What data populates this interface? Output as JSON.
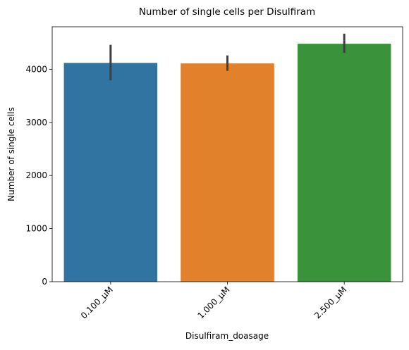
{
  "chart_data": {
    "type": "bar",
    "title": "Number of single cells per Disulfiram",
    "xlabel": "Disulfiram_doasage",
    "ylabel": "Number of single cells",
    "categories": [
      "0.100_µM",
      "1.000_µM",
      "2.500_µM"
    ],
    "values": [
      4120,
      4110,
      4480
    ],
    "error_bars": [
      [
        3790,
        4460
      ],
      [
        3970,
        4260
      ],
      [
        4310,
        4670
      ]
    ],
    "colors": [
      "#3274a1",
      "#e1812c",
      "#3a923a"
    ],
    "ylim": [
      0,
      4800
    ],
    "yticks": [
      0,
      1000,
      2000,
      3000,
      4000
    ],
    "xtick_rotation": 45,
    "grid": false,
    "legend": "none"
  }
}
